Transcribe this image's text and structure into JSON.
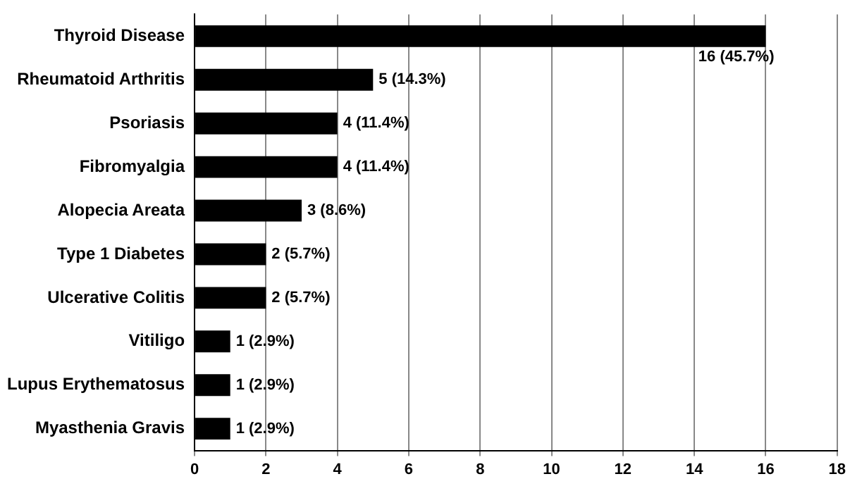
{
  "chart_data": {
    "type": "bar",
    "orientation": "horizontal",
    "categories": [
      "Thyroid Disease",
      "Rheumatoid Arthritis",
      "Psoriasis",
      "Fibromyalgia",
      "Alopecia Areata",
      "Type 1 Diabetes",
      "Ulcerative Colitis",
      "Vitiligo",
      "Lupus Erythematosus",
      "Myasthenia Gravis"
    ],
    "values": [
      16,
      5,
      4,
      4,
      3,
      2,
      2,
      1,
      1,
      1
    ],
    "value_labels": [
      "16 (45.7%)",
      "5 (14.3%)",
      "4 (11.4%)",
      "4 (11.4%)",
      "3 (8.6%)",
      "2 (5.7%)",
      "2 (5.7%)",
      "1 (2.9%)",
      "1 (2.9%)",
      "1 (2.9%)"
    ],
    "color": "#000000",
    "xlim": [
      0,
      18
    ],
    "xticks": [
      0,
      2,
      4,
      6,
      8,
      10,
      12,
      14,
      16,
      18
    ],
    "grid": "x",
    "legend": false
  }
}
